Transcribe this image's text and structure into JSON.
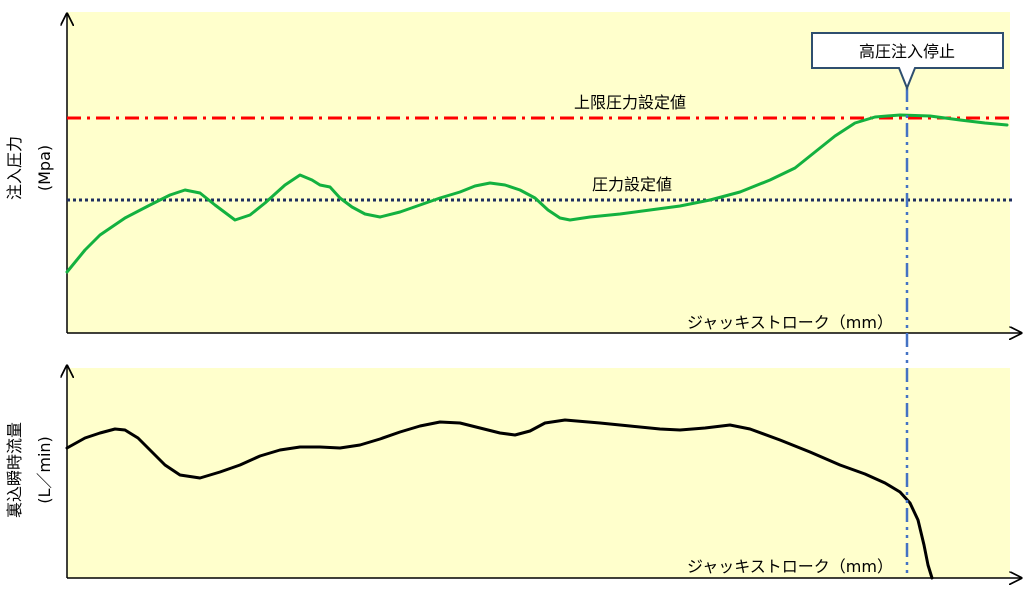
{
  "top_panel": {
    "y_label": "注入圧力",
    "y_unit": "(Mpa)",
    "x_label": "ジャッキストローク（mm）",
    "upper_limit_label": "上限圧力設定値",
    "setpoint_label": "圧力設定値",
    "callout": "高圧注入停止"
  },
  "bottom_panel": {
    "y_label": "裏込瞬時流量",
    "y_unit": "(L／min)",
    "x_label": "ジャッキストローク（mm）"
  }
}
